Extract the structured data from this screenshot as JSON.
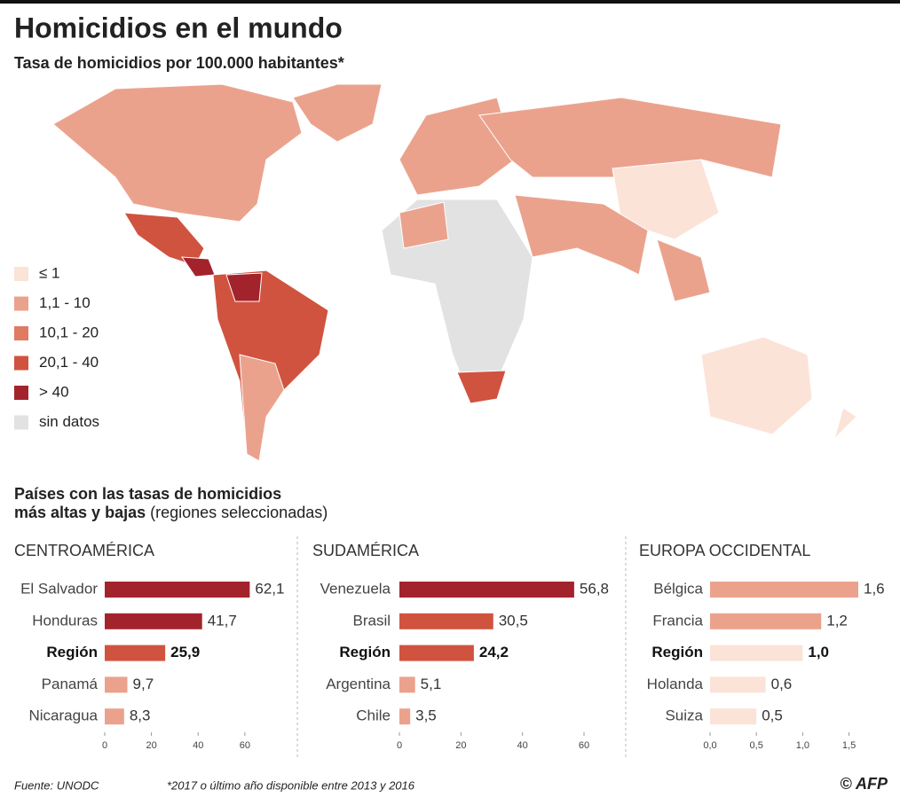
{
  "title": "Homicidios en el mundo",
  "subtitle": "Tasa de homicidios por 100.000 habitantes*",
  "legend": [
    {
      "label": "≤ 1",
      "color": "#fbe3d8"
    },
    {
      "label": "1,1 - 10",
      "color": "#eba28d"
    },
    {
      "label": "10,1 - 20",
      "color": "#e07a60"
    },
    {
      "label": "20,1 - 40",
      "color": "#d0533f"
    },
    {
      "label": "> 40",
      "color": "#a3232d"
    },
    {
      "label": "sin datos",
      "color": "#e2e2e2"
    }
  ],
  "section": {
    "line1": "Países con las tasas de homicidios",
    "line2_bold": "más altas y bajas",
    "line2_rest": " (regiones seleccionadas)"
  },
  "chart_data": [
    {
      "type": "bar",
      "title": "CENTROAMÉRICA",
      "categories": [
        "El Salvador",
        "Honduras",
        "Región",
        "Panamá",
        "Nicaragua"
      ],
      "values": [
        62.1,
        41.7,
        25.9,
        9.7,
        8.3
      ],
      "value_labels": [
        "62,1",
        "41,7",
        "25,9",
        "9,7",
        "8,3"
      ],
      "colors": [
        "#a3232d",
        "#a3232d",
        "#d0533f",
        "#eba28d",
        "#eba28d"
      ],
      "bold_index": 2,
      "xlim": [
        0,
        65
      ],
      "xticks": [
        0,
        20,
        40,
        60
      ]
    },
    {
      "type": "bar",
      "title": "SUDAMÉRICA",
      "categories": [
        "Venezuela",
        "Brasil",
        "Región",
        "Argentina",
        "Chile"
      ],
      "values": [
        56.8,
        30.5,
        24.2,
        5.1,
        3.5
      ],
      "value_labels": [
        "56,8",
        "30,5",
        "24,2",
        "5,1",
        "3,5"
      ],
      "colors": [
        "#a3232d",
        "#d0533f",
        "#d0533f",
        "#eba28d",
        "#eba28d"
      ],
      "bold_index": 2,
      "xlim": [
        0,
        60
      ],
      "xticks": [
        0,
        20,
        40,
        60
      ]
    },
    {
      "type": "bar",
      "title": "EUROPA OCCIDENTAL",
      "categories": [
        "Bélgica",
        "Francia",
        "Región",
        "Holanda",
        "Suiza"
      ],
      "values": [
        1.6,
        1.2,
        1.0,
        0.6,
        0.5
      ],
      "value_labels": [
        "1,6",
        "1,2",
        "1,0",
        "0,6",
        "0,5"
      ],
      "colors": [
        "#eba28d",
        "#eba28d",
        "#fbe3d8",
        "#fbe3d8",
        "#fbe3d8"
      ],
      "bold_index": 2,
      "xlim": [
        0,
        1.6
      ],
      "xticks": [
        {
          "value": 0,
          "label": "0,0"
        },
        {
          "value": 0.5,
          "label": "0,5"
        },
        {
          "value": 1.0,
          "label": "1,0"
        },
        {
          "value": 1.5,
          "label": "1,5"
        }
      ]
    }
  ],
  "footer": {
    "source": "Fuente: UNODC",
    "note": "*2017 o último año disponible entre 2013 y 2016",
    "credit": "© AFP"
  }
}
